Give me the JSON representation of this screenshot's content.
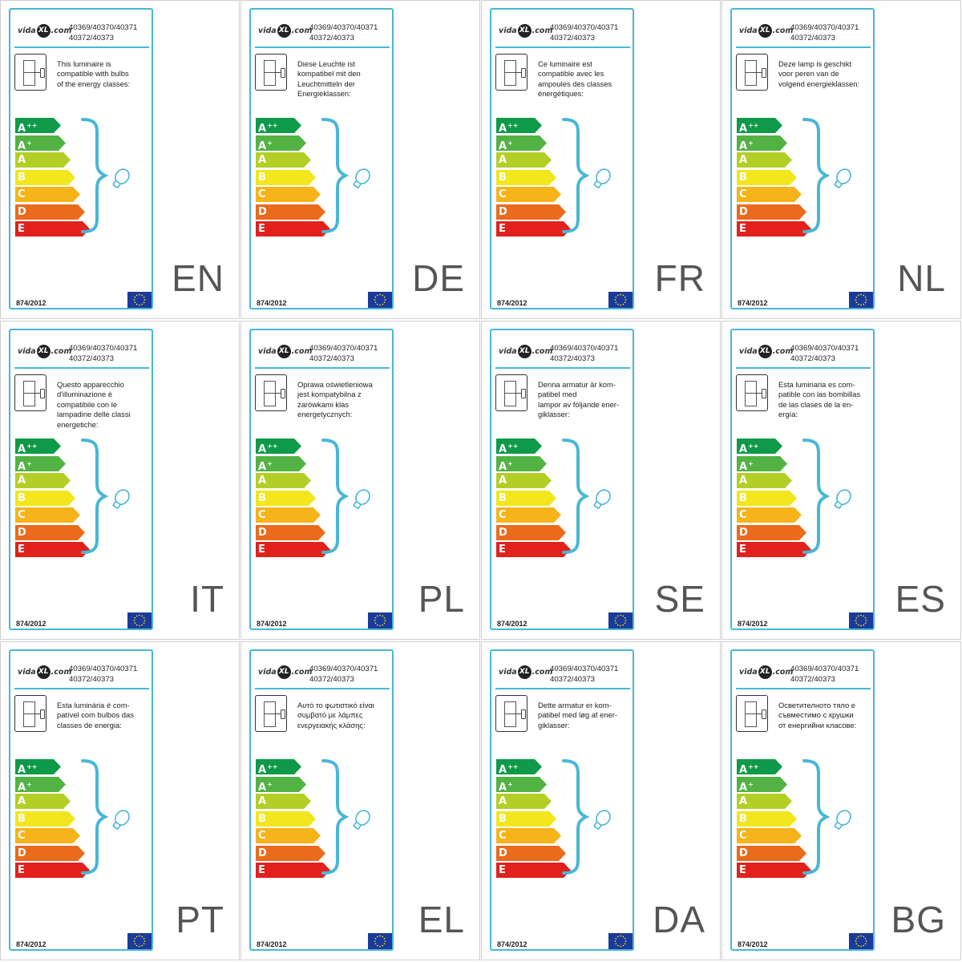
{
  "brand": {
    "logo_prefix": "vida",
    "logo_mark": "XL",
    "logo_suffix": ".com"
  },
  "product_codes": "40369/40370/40371\n40372/40373",
  "regulation": "874/2012",
  "classes": [
    {
      "letter": "A",
      "sup": "++",
      "color": "#0e9a48"
    },
    {
      "letter": "A",
      "sup": "+",
      "color": "#52b243"
    },
    {
      "letter": "A",
      "sup": "",
      "color": "#b3cf25"
    },
    {
      "letter": "B",
      "sup": "",
      "color": "#f2e61c"
    },
    {
      "letter": "C",
      "sup": "",
      "color": "#f6b31a"
    },
    {
      "letter": "D",
      "sup": "",
      "color": "#ea6b1c"
    },
    {
      "letter": "E",
      "sup": "",
      "color": "#e2211c"
    }
  ],
  "accent_color": "#48b7d6",
  "tiles": [
    {
      "code": "EN",
      "text": "This luminaire is\ncompatible with bulbs\nof the energy classes:"
    },
    {
      "code": "DE",
      "text": "Diese Leuchte ist\nkompatibel mit den\nLeuchtmitteln der\nEnergieklassen:"
    },
    {
      "code": "FR",
      "text": "Ce luminaire est\ncompatible avec les\nampoules des classes\nénergétiques:"
    },
    {
      "code": "NL",
      "text": "Deze lamp is geschikt\nvoor peren van de\nvolgend energieklassen:"
    },
    {
      "code": "IT",
      "text": "Questo apparecchio\nd'illuminazione è\ncompatibile con le\nlampadine delle classi\nenergetiche:"
    },
    {
      "code": "PL",
      "text": "Oprawa oświetleniowa\njest kompatybilna z\nżarówkami klas\nenergetycznych:"
    },
    {
      "code": "SE",
      "text": "Denna armatur är kom-\npatibel med\nlampor av följande ener-\ngiklasser:"
    },
    {
      "code": "ES",
      "text": "Esta luminaria es com-\npatible con las bombillas\nde las clases de la en-\nergía:"
    },
    {
      "code": "PT",
      "text": "Esta luminária é com-\npatível com bulbos das\nclasses de energia:"
    },
    {
      "code": "EL",
      "text": "Αυτό το φωτιστικό είναι\nσυμβατό με λάμπες\nενεργειακής κλάσης:"
    },
    {
      "code": "DA",
      "text": "Dette armatur er kom-\npatibel med løg af ener-\ngiklasser:"
    },
    {
      "code": "BG",
      "text": "Осветителното тяло е\nсъвместимо с крушки\nот енергийни класове:"
    }
  ]
}
